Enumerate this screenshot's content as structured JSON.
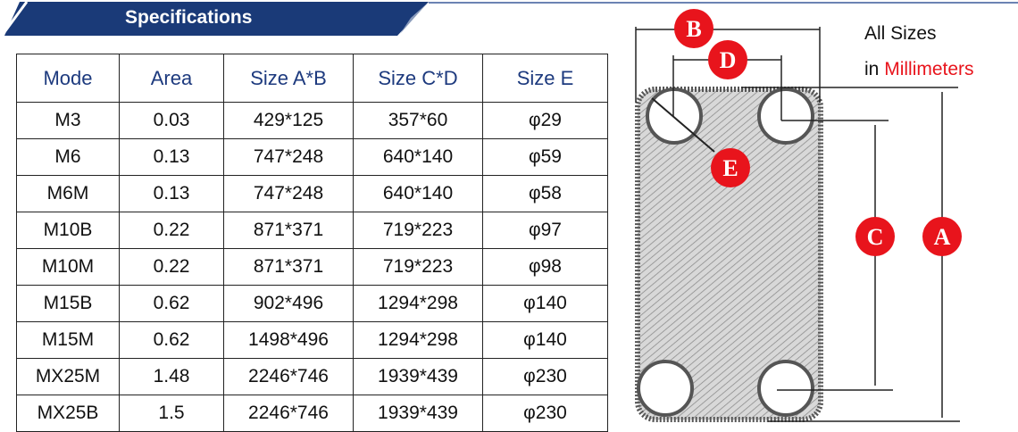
{
  "banner": {
    "title": "Specifications",
    "color": "#1a3a78"
  },
  "table": {
    "headers": [
      "Mode",
      "Area",
      "Size A*B",
      "Size C*D",
      "Size E"
    ],
    "rows": [
      [
        "M3",
        "0.03",
        "429*125",
        "357*60",
        "φ29"
      ],
      [
        "M6",
        "0.13",
        "747*248",
        "640*140",
        "φ59"
      ],
      [
        "M6M",
        "0.13",
        "747*248",
        "640*140",
        "φ58"
      ],
      [
        "M10B",
        "0.22",
        "871*371",
        "719*223",
        "φ97"
      ],
      [
        "M10M",
        "0.22",
        "871*371",
        "719*223",
        "φ98"
      ],
      [
        "M15B",
        "0.62",
        "902*496",
        "1294*298",
        "φ140"
      ],
      [
        "M15M",
        "0.62",
        "1498*496",
        "1294*298",
        "φ140"
      ],
      [
        "MX25M",
        "1.48",
        "2246*746",
        "1939*439",
        "φ230"
      ],
      [
        "MX25B",
        "1.5",
        "2246*746",
        "1939*439",
        "φ230"
      ]
    ]
  },
  "diagram": {
    "labels": {
      "a": "A",
      "b": "B",
      "c": "C",
      "d": "D",
      "e": "E"
    },
    "label_color": "#e8141c"
  },
  "note": {
    "line1": "All Sizes",
    "line2_prefix": "in",
    "line2_unit": "Millimeters"
  }
}
